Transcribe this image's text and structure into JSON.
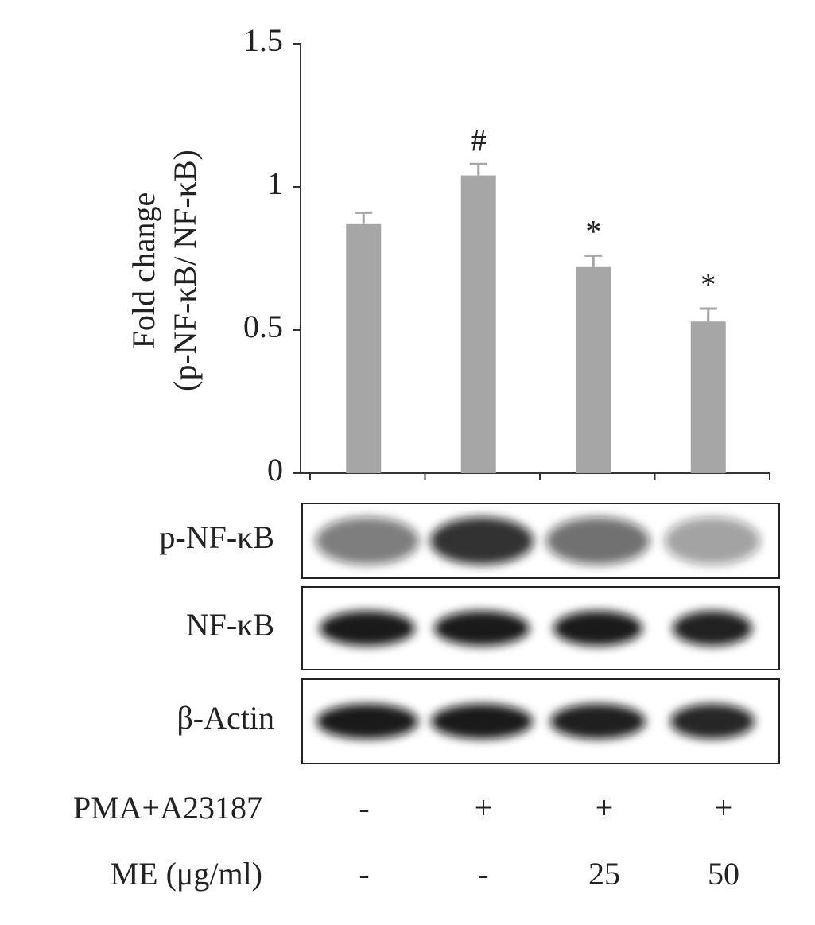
{
  "chart_data": {
    "type": "bar",
    "y_label": [
      "Fold change",
      "(p-NF-κB/ NF-κB)"
    ],
    "categories": [
      null,
      null,
      null,
      null
    ],
    "values": [
      0.87,
      1.04,
      0.72,
      0.53
    ],
    "errors": [
      0.04,
      0.04,
      0.04,
      0.045
    ],
    "annotations": [
      null,
      "#",
      "*",
      "*"
    ],
    "color": "#a6a6a6",
    "ylim": [
      0,
      1.5
    ],
    "yticks": [
      0,
      0.5,
      1,
      1.5
    ]
  },
  "blot": {
    "rows": [
      "p-NF-κB",
      "NF-κB",
      "β-Actin"
    ]
  },
  "treatments": [
    {
      "label": "PMA+A23187",
      "values": [
        "-",
        "+",
        "+",
        "+"
      ]
    },
    {
      "label": "ME (μg/ml)",
      "values": [
        "-",
        "-",
        "25",
        "50"
      ]
    }
  ]
}
